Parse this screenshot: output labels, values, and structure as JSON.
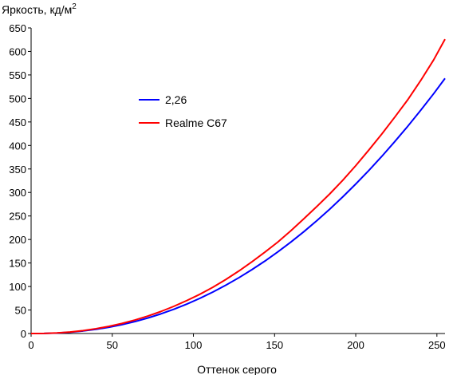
{
  "chart_data": {
    "type": "line",
    "title": "",
    "ylabel": "Яркость, кд/м",
    "ylabel_superscript": "2",
    "xlabel": "Оттенок серого",
    "xlim": [
      0,
      255
    ],
    "ylim": [
      0,
      650
    ],
    "xticks": [
      0,
      50,
      100,
      150,
      200,
      250
    ],
    "yticks": [
      0,
      50,
      100,
      150,
      200,
      250,
      300,
      350,
      400,
      450,
      500,
      550,
      600,
      650
    ],
    "grid": false,
    "legend_position": "upper-left-center",
    "series": [
      {
        "name": "2,26",
        "color": "#0000ff",
        "x": [
          0,
          8,
          16,
          24,
          32,
          40,
          48,
          56,
          64,
          72,
          80,
          88,
          96,
          104,
          112,
          120,
          128,
          136,
          144,
          152,
          160,
          168,
          176,
          184,
          192,
          200,
          208,
          216,
          224,
          232,
          240,
          248,
          255
        ],
        "y": [
          0,
          0.2,
          1.1,
          2.8,
          5.4,
          8.9,
          13.4,
          18.9,
          25.4,
          33.1,
          41.8,
          51.7,
          62.7,
          74.9,
          88.3,
          102.9,
          118.7,
          135.8,
          154.0,
          173.6,
          194.4,
          216.5,
          239.9,
          264.6,
          290.6,
          318.0,
          346.6,
          376.6,
          408.0,
          440.6,
          474.7,
          510.1,
          542.7
        ]
      },
      {
        "name": "Realme C67",
        "color": "#ff0000",
        "x": [
          0,
          8,
          16,
          24,
          32,
          40,
          48,
          56,
          64,
          72,
          80,
          88,
          96,
          104,
          112,
          120,
          128,
          136,
          144,
          152,
          160,
          168,
          176,
          184,
          192,
          200,
          208,
          216,
          224,
          232,
          240,
          248,
          255
        ],
        "y": [
          0,
          0.3,
          1.3,
          3.2,
          6.2,
          10.3,
          15.3,
          21.4,
          28.8,
          37.2,
          46.9,
          57.9,
          70.2,
          83.5,
          98.5,
          115.0,
          133.0,
          152.5,
          173.0,
          194.5,
          218.5,
          244.0,
          270.0,
          297.0,
          326.0,
          357.0,
          390.0,
          424.0,
          460.0,
          497.0,
          538.0,
          582.0,
          626.0
        ]
      }
    ]
  }
}
